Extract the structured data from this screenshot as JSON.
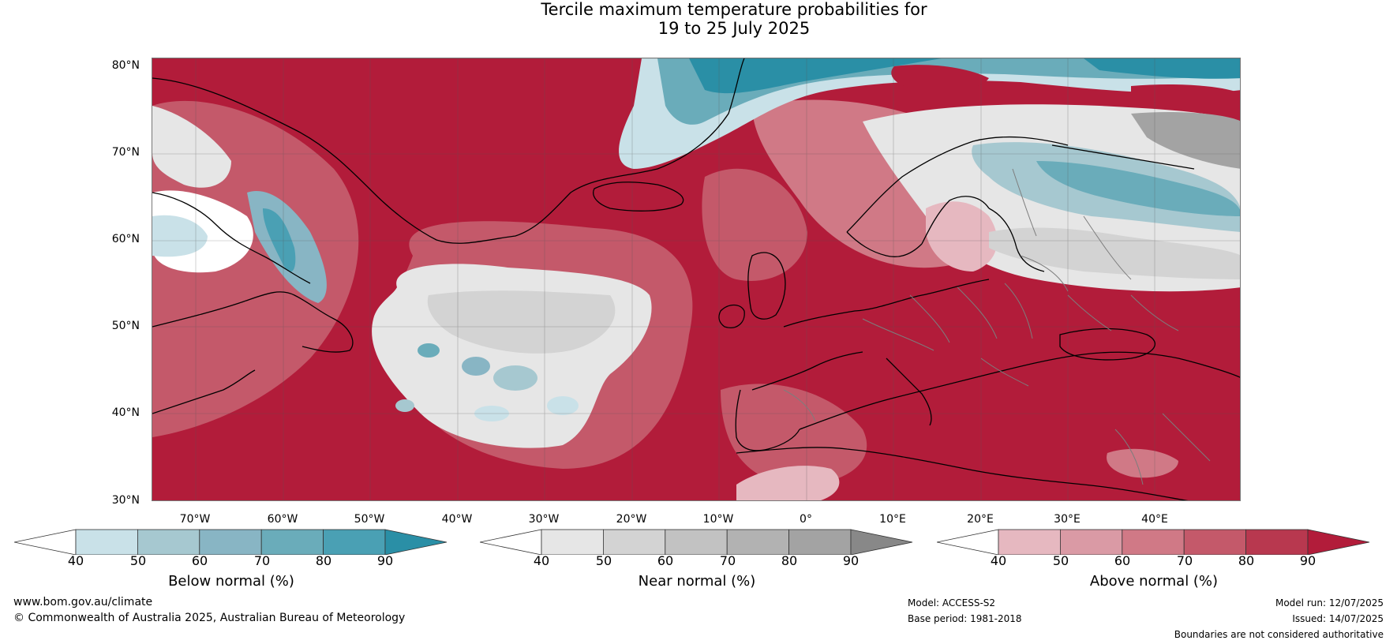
{
  "title": {
    "line1": "Tercile maximum temperature probabilities for",
    "line2": "19 to 25 July 2025"
  },
  "map": {
    "latitude_labels": [
      "80°N",
      "70°N",
      "60°N",
      "50°N",
      "40°N",
      "30°N"
    ],
    "longitude_labels": [
      "70°W",
      "60°W",
      "50°W",
      "40°W",
      "30°W",
      "20°W",
      "10°W",
      "0°",
      "10°E",
      "20°E",
      "30°E",
      "40°E"
    ]
  },
  "colorbars": [
    {
      "label": "Below normal (%)",
      "ticks": [
        "40",
        "50",
        "60",
        "70",
        "80",
        "90"
      ],
      "colors": [
        "#ffffff",
        "#c9e1e8",
        "#a6c8d0",
        "#88b5c4",
        "#6aacba",
        "#4aa0b4",
        "#2a8fa6"
      ]
    },
    {
      "label": "Near normal (%)",
      "ticks": [
        "40",
        "50",
        "60",
        "70",
        "80",
        "90"
      ],
      "colors": [
        "#ffffff",
        "#e6e6e6",
        "#d3d3d3",
        "#c2c2c2",
        "#b2b2b2",
        "#a3a3a3",
        "#888888"
      ]
    },
    {
      "label": "Above normal (%)",
      "ticks": [
        "40",
        "50",
        "60",
        "70",
        "80",
        "90"
      ],
      "colors": [
        "#ffffff",
        "#e6b8c0",
        "#da9aa5",
        "#d07986",
        "#c4596a",
        "#b8384f",
        "#b21c3a"
      ]
    }
  ],
  "footer": {
    "website": "www.bom.gov.au/climate",
    "copyright": "© Commonwealth of Australia 2025, Australian Bureau of Meteorology",
    "model": "Model: ACCESS-S2",
    "base_period": "Base period: 1981-2018",
    "model_run": "Model run: 12/07/2025",
    "issued": "Issued: 14/07/2025",
    "boundaries_note": "Boundaries are not considered authoritative"
  }
}
